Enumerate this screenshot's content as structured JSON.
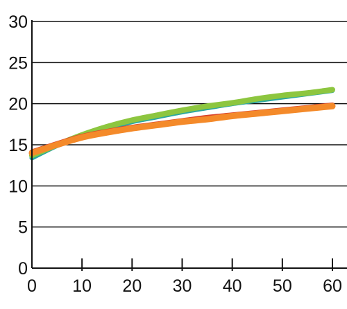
{
  "chart_data": {
    "type": "line",
    "title": "",
    "xlabel": "",
    "ylabel": "",
    "xlim": [
      0,
      60
    ],
    "ylim": [
      0,
      30
    ],
    "x_ticks": [
      0,
      10,
      20,
      30,
      40,
      50,
      60
    ],
    "y_ticks": [
      0,
      5,
      10,
      15,
      20,
      25,
      30
    ],
    "grid": "horizontal",
    "legend": "none",
    "x": [
      0,
      5,
      10,
      15,
      20,
      25,
      30,
      35,
      40,
      45,
      50,
      55,
      60
    ],
    "series": [
      {
        "color": "#2aa7a0",
        "values": [
          13.4,
          14.9,
          16.1,
          17.0,
          17.8,
          18.4,
          19.0,
          19.5,
          20.0,
          20.4,
          20.8,
          21.2,
          21.6
        ]
      },
      {
        "color": "#8dc63f",
        "values": [
          13.7,
          15.0,
          16.2,
          17.2,
          18.0,
          18.6,
          19.2,
          19.7,
          20.1,
          20.6,
          21.0,
          21.3,
          21.7
        ]
      },
      {
        "color": "#d9432c",
        "values": [
          14.1,
          15.1,
          16.0,
          16.6,
          17.1,
          17.5,
          17.9,
          18.3,
          18.6,
          18.9,
          19.2,
          19.5,
          19.8
        ]
      },
      {
        "color": "#f48a2a",
        "values": [
          14.0,
          15.0,
          15.9,
          16.5,
          17.0,
          17.4,
          17.8,
          18.1,
          18.5,
          18.8,
          19.1,
          19.4,
          19.7
        ]
      }
    ]
  }
}
